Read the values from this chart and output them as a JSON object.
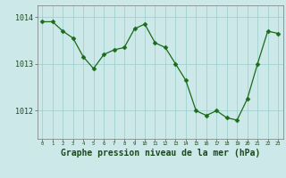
{
  "x": [
    0,
    1,
    2,
    3,
    4,
    5,
    6,
    7,
    8,
    9,
    10,
    11,
    12,
    13,
    14,
    15,
    16,
    17,
    18,
    19,
    20,
    21,
    22,
    23
  ],
  "y": [
    1013.9,
    1013.9,
    1013.7,
    1013.55,
    1013.15,
    1012.9,
    1013.2,
    1013.3,
    1013.35,
    1013.75,
    1013.85,
    1013.45,
    1013.35,
    1013.0,
    1012.65,
    1012.0,
    1011.9,
    1012.0,
    1011.85,
    1011.8,
    1012.25,
    1013.0,
    1013.7,
    1013.65
  ],
  "line_color": "#1a6b1a",
  "marker": "D",
  "marker_size": 2.5,
  "bg_color": "#cce8e8",
  "grid_color": "#99cccc",
  "axis_color": "#777777",
  "xlabel": "Graphe pression niveau de la mer (hPa)",
  "xlabel_fontsize": 7,
  "ytick_labels": [
    "1012",
    "1013",
    "1014"
  ],
  "ytick_values": [
    1012,
    1013,
    1014
  ],
  "ylim": [
    1011.4,
    1014.25
  ],
  "xlim": [
    -0.5,
    23.5
  ]
}
